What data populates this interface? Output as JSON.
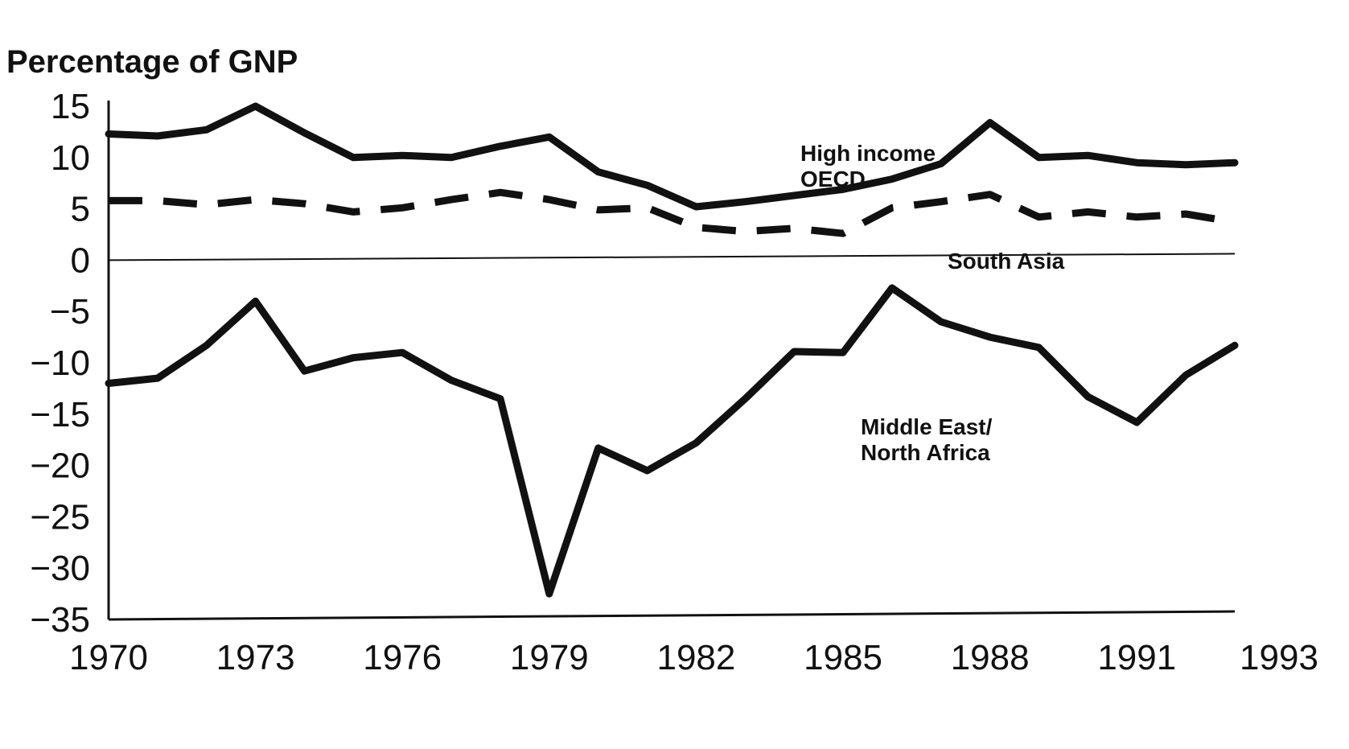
{
  "chart_data": {
    "type": "line",
    "title": "Percentage of GNP",
    "xlabel": "",
    "ylabel": "",
    "xlim": [
      1970,
      1993
    ],
    "ylim": [
      -35,
      15
    ],
    "x_ticks": [
      1970,
      1973,
      1976,
      1979,
      1982,
      1985,
      1988,
      1991,
      1993
    ],
    "x_tick_labels": [
      "1970",
      "1973",
      "1976",
      "1979",
      "1982",
      "1985",
      "1988",
      "1991",
      "1993"
    ],
    "y_ticks": [
      15,
      10,
      5,
      0,
      -5,
      -10,
      -15,
      -20,
      -25,
      -30,
      -35
    ],
    "y_tick_labels": [
      "15",
      "10",
      "5",
      "0",
      "−5",
      "−10",
      "−15",
      "−20",
      "−25",
      "−30",
      "−35"
    ],
    "grid": false,
    "legend": "none",
    "x": [
      1970,
      1971,
      1972,
      1973,
      1974,
      1975,
      1976,
      1977,
      1978,
      1979,
      1980,
      1981,
      1982,
      1983,
      1984,
      1985,
      1986,
      1987,
      1988,
      1989,
      1990,
      1991,
      1992,
      1993
    ],
    "series": [
      {
        "name": "High income OECD",
        "label_lines": [
          "High income",
          "OECD"
        ],
        "style": "solid",
        "color": "#111111",
        "values": [
          12.3,
          12.1,
          12.7,
          15.0,
          12.4,
          10.0,
          10.2,
          10.0,
          11.1,
          12.0,
          8.6,
          7.3,
          5.2,
          5.7,
          6.3,
          6.9,
          7.9,
          9.4,
          13.4,
          10.0,
          10.2,
          9.5,
          9.3,
          9.5
        ]
      },
      {
        "name": "South Asia",
        "label_lines": [
          "South Asia"
        ],
        "style": "dashed",
        "color": "#111111",
        "values": [
          5.8,
          5.8,
          5.4,
          5.9,
          5.5,
          4.7,
          5.1,
          5.9,
          6.6,
          5.9,
          4.9,
          5.1,
          3.2,
          2.8,
          3.1,
          2.6,
          5.1,
          5.7,
          6.4,
          4.2,
          4.7,
          4.2,
          4.5,
          3.7
        ]
      },
      {
        "name": "Middle East/ North Africa",
        "label_lines": [
          "Middle East/",
          "North Africa"
        ],
        "style": "solid",
        "color": "#111111",
        "values": [
          -12.0,
          -11.5,
          -8.3,
          -4.0,
          -10.8,
          -9.5,
          -9.0,
          -11.7,
          -13.5,
          -32.5,
          -18.3,
          -20.5,
          -17.8,
          -13.5,
          -8.9,
          -9.0,
          -2.7,
          -6.0,
          -7.5,
          -8.5,
          -13.3,
          -15.8,
          -11.2,
          -8.3
        ]
      }
    ]
  }
}
